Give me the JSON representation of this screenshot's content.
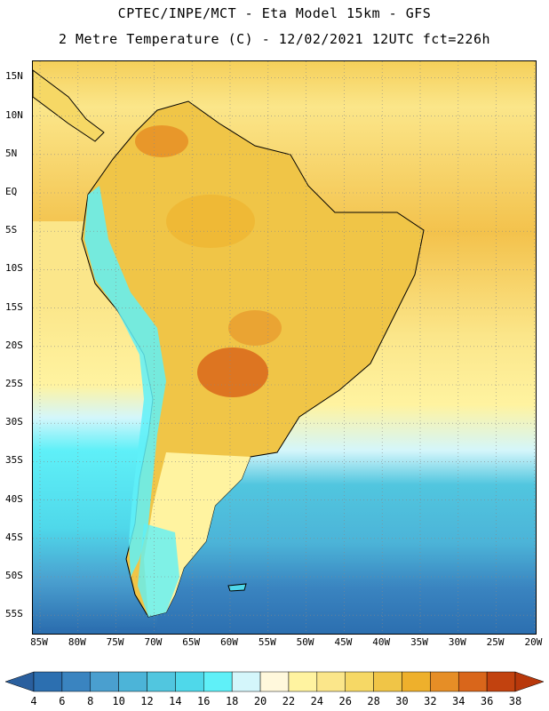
{
  "header": {
    "line1": "CPTEC/INPE/MCT -  Eta Model 15km - GFS",
    "line2": "2 Metre Temperature (C) - 12/02/2021 12UTC fct=226h"
  },
  "map": {
    "lat_ticks": [
      "15N",
      "10N",
      "5N",
      "EQ",
      "5S",
      "10S",
      "15S",
      "20S",
      "25S",
      "30S",
      "35S",
      "40S",
      "45S",
      "50S",
      "55S"
    ],
    "lon_ticks": [
      "85W",
      "80W",
      "75W",
      "70W",
      "65W",
      "60W",
      "55W",
      "50W",
      "45W",
      "40W",
      "35W",
      "30W",
      "25W",
      "20W"
    ],
    "lon_range": [
      -86,
      -20
    ],
    "lat_range": [
      17,
      -58
    ]
  },
  "colorbar": {
    "labels": [
      "4",
      "6",
      "8",
      "10",
      "12",
      "14",
      "16",
      "18",
      "20",
      "22",
      "24",
      "26",
      "28",
      "30",
      "32",
      "34",
      "36",
      "38"
    ],
    "colors": [
      "#2c6fb0",
      "#3a84c0",
      "#4a9fcf",
      "#4cb4d8",
      "#51c6df",
      "#4fd8ea",
      "#5ff0f8",
      "#d4f6fb",
      "#fff8dc",
      "#fff3a0",
      "#fbe68a",
      "#f6d865",
      "#f0c547",
      "#eeb02c",
      "#e68e26",
      "#d9661b",
      "#c2420f"
    ]
  }
}
